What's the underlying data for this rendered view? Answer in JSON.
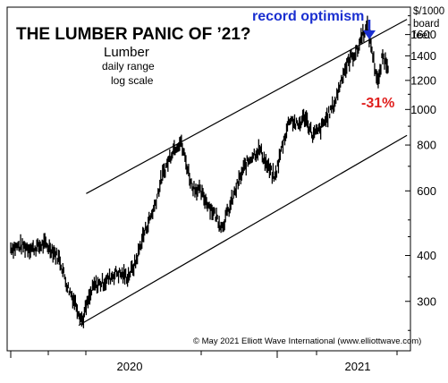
{
  "chart_data": {
    "type": "line",
    "title": "THE LUMBER PANIC OF ’21?",
    "subtitle": "Lumber",
    "notes": [
      "daily range",
      "log scale"
    ],
    "ylabel_lines": [
      "$/1000",
      "board",
      "feet"
    ],
    "scale": "log",
    "ylim": [
      220,
      1900
    ],
    "yticks": [
      300,
      400,
      600,
      800,
      1000,
      1200,
      1400,
      1600
    ],
    "xticks": [
      "2020",
      "2021"
    ],
    "annotations": {
      "peak": "record optimism",
      "decline": "-31%",
      "copyright": "© May 2021 Elliott Wave International (www.elliottwave.com)"
    },
    "colors": {
      "peak": "#1a2fd0",
      "decline": "#e0201e",
      "series": "#000000"
    },
    "series": [
      {
        "values": [
          {
            "t": 0.0,
            "v": 420
          },
          {
            "t": 0.03,
            "v": 425
          },
          {
            "t": 0.06,
            "v": 418
          },
          {
            "t": 0.09,
            "v": 430
          },
          {
            "t": 0.11,
            "v": 415
          },
          {
            "t": 0.13,
            "v": 390
          },
          {
            "t": 0.15,
            "v": 330
          },
          {
            "t": 0.17,
            "v": 300
          },
          {
            "t": 0.19,
            "v": 265
          },
          {
            "t": 0.2,
            "v": 290
          },
          {
            "t": 0.22,
            "v": 330
          },
          {
            "t": 0.25,
            "v": 340
          },
          {
            "t": 0.28,
            "v": 360
          },
          {
            "t": 0.31,
            "v": 350
          },
          {
            "t": 0.33,
            "v": 380
          },
          {
            "t": 0.35,
            "v": 450
          },
          {
            "t": 0.38,
            "v": 540
          },
          {
            "t": 0.4,
            "v": 650
          },
          {
            "t": 0.43,
            "v": 780
          },
          {
            "t": 0.45,
            "v": 820
          },
          {
            "t": 0.46,
            "v": 750
          },
          {
            "t": 0.48,
            "v": 620
          },
          {
            "t": 0.5,
            "v": 600
          },
          {
            "t": 0.52,
            "v": 560
          },
          {
            "t": 0.54,
            "v": 520
          },
          {
            "t": 0.56,
            "v": 480
          },
          {
            "t": 0.58,
            "v": 540
          },
          {
            "t": 0.6,
            "v": 620
          },
          {
            "t": 0.62,
            "v": 700
          },
          {
            "t": 0.64,
            "v": 750
          },
          {
            "t": 0.66,
            "v": 780
          },
          {
            "t": 0.68,
            "v": 700
          },
          {
            "t": 0.7,
            "v": 650
          },
          {
            "t": 0.72,
            "v": 800
          },
          {
            "t": 0.74,
            "v": 950
          },
          {
            "t": 0.76,
            "v": 900
          },
          {
            "t": 0.78,
            "v": 960
          },
          {
            "t": 0.8,
            "v": 850
          },
          {
            "t": 0.82,
            "v": 880
          },
          {
            "t": 0.84,
            "v": 960
          },
          {
            "t": 0.86,
            "v": 1050
          },
          {
            "t": 0.88,
            "v": 1250
          },
          {
            "t": 0.9,
            "v": 1380
          },
          {
            "t": 0.92,
            "v": 1450
          },
          {
            "t": 0.93,
            "v": 1600
          },
          {
            "t": 0.945,
            "v": 1680
          },
          {
            "t": 0.955,
            "v": 1500
          },
          {
            "t": 0.965,
            "v": 1300
          },
          {
            "t": 0.975,
            "v": 1180
          },
          {
            "t": 0.985,
            "v": 1400
          },
          {
            "t": 1.0,
            "v": 1320
          }
        ]
      }
    ],
    "channel": {
      "upper": [
        {
          "t": 0.2,
          "v": 590
        },
        {
          "t": 1.05,
          "v": 1760
        }
      ],
      "lower": [
        {
          "t": 0.18,
          "v": 258
        },
        {
          "t": 1.05,
          "v": 850
        }
      ]
    }
  }
}
